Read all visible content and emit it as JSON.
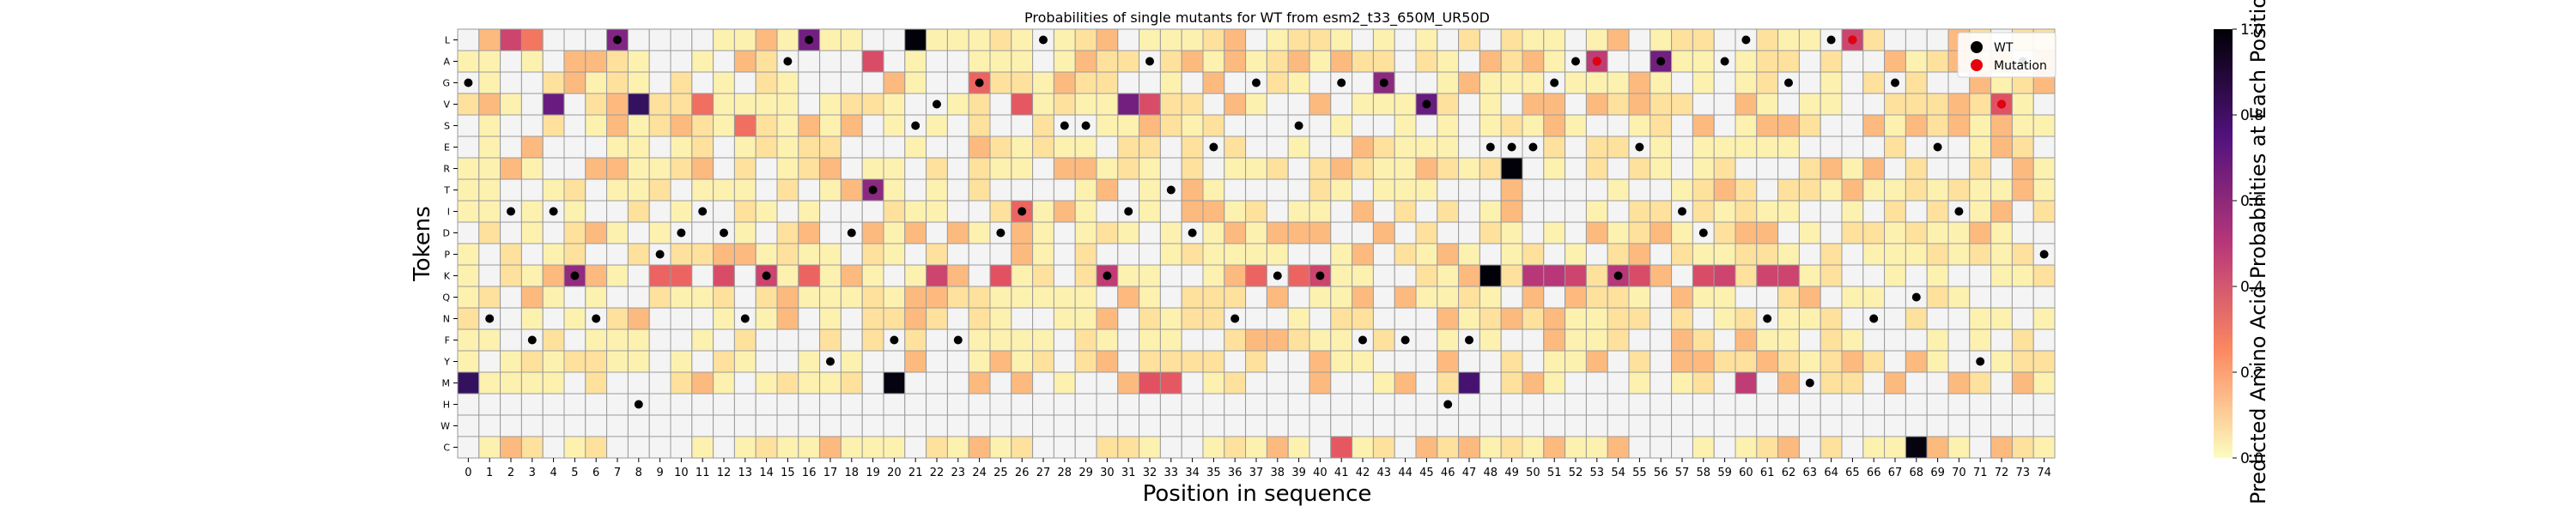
{
  "chart_data": {
    "type": "heatmap",
    "title": "Probabilities of single mutants for WT from esm2_t33_650M_UR50D",
    "xlabel": "Position in sequence",
    "ylabel": "Tokens",
    "colorbar_label": "Predicted Amino Acid Probabilities at Each Position",
    "colorbar_ticks": [
      "0.0",
      "0.2",
      "0.4",
      "0.6",
      "0.8",
      "1.0"
    ],
    "vrange": [
      0,
      1
    ],
    "colormap": "magma_r",
    "x_tick_labels": [
      "0",
      "1",
      "2",
      "3",
      "4",
      "5",
      "6",
      "7",
      "8",
      "9",
      "10",
      "11",
      "12",
      "13",
      "14",
      "15",
      "16",
      "17",
      "18",
      "19",
      "20",
      "21",
      "22",
      "23",
      "24",
      "25",
      "26",
      "27",
      "28",
      "29",
      "30",
      "31",
      "32",
      "33",
      "34",
      "35",
      "36",
      "37",
      "38",
      "39",
      "40",
      "41",
      "42",
      "43",
      "44",
      "45",
      "46",
      "47",
      "48",
      "49",
      "50",
      "51",
      "52",
      "53",
      "54",
      "55",
      "56",
      "57",
      "58",
      "59",
      "60",
      "61",
      "62",
      "63",
      "64",
      "65",
      "66",
      "67",
      "68",
      "69",
      "70",
      "71",
      "72",
      "73",
      "74"
    ],
    "tokens": [
      "L",
      "A",
      "G",
      "V",
      "S",
      "E",
      "R",
      "T",
      "I",
      "D",
      "P",
      "K",
      "Q",
      "N",
      "F",
      "Y",
      "M",
      "H",
      "W",
      "C"
    ],
    "legend": {
      "position": "top-right",
      "entries": [
        {
          "label": "WT",
          "color": "#000000"
        },
        {
          "label": "Mutation",
          "color": "#e3000f"
        }
      ]
    },
    "wt": [
      {
        "pos": 0,
        "token": "G"
      },
      {
        "pos": 1,
        "token": "N"
      },
      {
        "pos": 2,
        "token": "I"
      },
      {
        "pos": 3,
        "token": "F"
      },
      {
        "pos": 4,
        "token": "I"
      },
      {
        "pos": 5,
        "token": "K"
      },
      {
        "pos": 6,
        "token": "N"
      },
      {
        "pos": 7,
        "token": "L"
      },
      {
        "pos": 8,
        "token": "H"
      },
      {
        "pos": 9,
        "token": "P"
      },
      {
        "pos": 10,
        "token": "D"
      },
      {
        "pos": 11,
        "token": "I"
      },
      {
        "pos": 12,
        "token": "D"
      },
      {
        "pos": 13,
        "token": "N"
      },
      {
        "pos": 14,
        "token": "K"
      },
      {
        "pos": 15,
        "token": "A"
      },
      {
        "pos": 16,
        "token": "L"
      },
      {
        "pos": 17,
        "token": "Y"
      },
      {
        "pos": 18,
        "token": "D"
      },
      {
        "pos": 19,
        "token": "T"
      },
      {
        "pos": 20,
        "token": "F"
      },
      {
        "pos": 21,
        "token": "S"
      },
      {
        "pos": 22,
        "token": "V"
      },
      {
        "pos": 23,
        "token": "F"
      },
      {
        "pos": 24,
        "token": "G"
      },
      {
        "pos": 25,
        "token": "D"
      },
      {
        "pos": 26,
        "token": "I"
      },
      {
        "pos": 27,
        "token": "L"
      },
      {
        "pos": 28,
        "token": "S"
      },
      {
        "pos": 29,
        "token": "S"
      },
      {
        "pos": 30,
        "token": "K"
      },
      {
        "pos": 31,
        "token": "I"
      },
      {
        "pos": 32,
        "token": "A"
      },
      {
        "pos": 33,
        "token": "T"
      },
      {
        "pos": 34,
        "token": "D"
      },
      {
        "pos": 35,
        "token": "E"
      },
      {
        "pos": 36,
        "token": "N"
      },
      {
        "pos": 37,
        "token": "G"
      },
      {
        "pos": 38,
        "token": "K"
      },
      {
        "pos": 39,
        "token": "S"
      },
      {
        "pos": 40,
        "token": "K"
      },
      {
        "pos": 41,
        "token": "G"
      },
      {
        "pos": 42,
        "token": "F"
      },
      {
        "pos": 43,
        "token": "G"
      },
      {
        "pos": 44,
        "token": "F"
      },
      {
        "pos": 45,
        "token": "V"
      },
      {
        "pos": 46,
        "token": "H"
      },
      {
        "pos": 47,
        "token": "F"
      },
      {
        "pos": 48,
        "token": "E"
      },
      {
        "pos": 49,
        "token": "E"
      },
      {
        "pos": 50,
        "token": "E"
      },
      {
        "pos": 51,
        "token": "G"
      },
      {
        "pos": 52,
        "token": "A"
      },
      {
        "pos": 53,
        "token": "A"
      },
      {
        "pos": 54,
        "token": "K"
      },
      {
        "pos": 55,
        "token": "E"
      },
      {
        "pos": 56,
        "token": "A"
      },
      {
        "pos": 57,
        "token": "I"
      },
      {
        "pos": 58,
        "token": "D"
      },
      {
        "pos": 59,
        "token": "A"
      },
      {
        "pos": 60,
        "token": "L"
      },
      {
        "pos": 61,
        "token": "N"
      },
      {
        "pos": 62,
        "token": "G"
      },
      {
        "pos": 63,
        "token": "M"
      },
      {
        "pos": 64,
        "token": "L"
      },
      {
        "pos": 65,
        "token": "L"
      },
      {
        "pos": 66,
        "token": "N"
      },
      {
        "pos": 67,
        "token": "G"
      },
      {
        "pos": 68,
        "token": "Q"
      },
      {
        "pos": 69,
        "token": "E"
      },
      {
        "pos": 70,
        "token": "I"
      },
      {
        "pos": 71,
        "token": "Y"
      },
      {
        "pos": 72,
        "token": "V"
      },
      {
        "pos": 73,
        "token": "A"
      },
      {
        "pos": 74,
        "token": "P"
      }
    ],
    "mutations": [
      {
        "pos": 53,
        "token": "A"
      },
      {
        "pos": 65,
        "token": "L"
      },
      {
        "pos": 72,
        "token": "V"
      }
    ],
    "strong_cells": [
      {
        "pos": 0,
        "token": "M",
        "value": 0.82
      },
      {
        "pos": 2,
        "token": "L",
        "value": 0.45
      },
      {
        "pos": 3,
        "token": "L",
        "value": 0.3
      },
      {
        "pos": 4,
        "token": "V",
        "value": 0.7
      },
      {
        "pos": 5,
        "token": "K",
        "value": 0.6
      },
      {
        "pos": 7,
        "token": "L",
        "value": 0.65
      },
      {
        "pos": 8,
        "token": "V",
        "value": 0.82
      },
      {
        "pos": 11,
        "token": "V",
        "value": 0.32
      },
      {
        "pos": 9,
        "token": "K",
        "value": 0.35
      },
      {
        "pos": 10,
        "token": "K",
        "value": 0.35
      },
      {
        "pos": 12,
        "token": "K",
        "value": 0.42
      },
      {
        "pos": 13,
        "token": "S",
        "value": 0.32
      },
      {
        "pos": 14,
        "token": "K",
        "value": 0.45
      },
      {
        "pos": 16,
        "token": "L",
        "value": 0.68
      },
      {
        "pos": 16,
        "token": "K",
        "value": 0.35
      },
      {
        "pos": 19,
        "token": "A",
        "value": 0.42
      },
      {
        "pos": 19,
        "token": "T",
        "value": 0.62
      },
      {
        "pos": 20,
        "token": "M",
        "value": 0.98
      },
      {
        "pos": 21,
        "token": "L",
        "value": 0.99
      },
      {
        "pos": 22,
        "token": "K",
        "value": 0.45
      },
      {
        "pos": 24,
        "token": "G",
        "value": 0.35
      },
      {
        "pos": 25,
        "token": "K",
        "value": 0.4
      },
      {
        "pos": 26,
        "token": "V",
        "value": 0.38
      },
      {
        "pos": 26,
        "token": "I",
        "value": 0.35
      },
      {
        "pos": 30,
        "token": "K",
        "value": 0.48
      },
      {
        "pos": 31,
        "token": "V",
        "value": 0.68
      },
      {
        "pos": 32,
        "token": "V",
        "value": 0.42
      },
      {
        "pos": 32,
        "token": "M",
        "value": 0.4
      },
      {
        "pos": 33,
        "token": "M",
        "value": 0.38
      },
      {
        "pos": 37,
        "token": "K",
        "value": 0.35
      },
      {
        "pos": 39,
        "token": "K",
        "value": 0.35
      },
      {
        "pos": 40,
        "token": "K",
        "value": 0.45
      },
      {
        "pos": 41,
        "token": "C",
        "value": 0.38
      },
      {
        "pos": 43,
        "token": "G",
        "value": 0.62
      },
      {
        "pos": 45,
        "token": "V",
        "value": 0.7
      },
      {
        "pos": 47,
        "token": "M",
        "value": 0.78
      },
      {
        "pos": 48,
        "token": "K",
        "value": 0.99
      },
      {
        "pos": 49,
        "token": "R",
        "value": 0.99
      },
      {
        "pos": 50,
        "token": "K",
        "value": 0.5
      },
      {
        "pos": 51,
        "token": "K",
        "value": 0.5
      },
      {
        "pos": 52,
        "token": "K",
        "value": 0.45
      },
      {
        "pos": 53,
        "token": "A",
        "value": 0.48
      },
      {
        "pos": 54,
        "token": "K",
        "value": 0.5
      },
      {
        "pos": 55,
        "token": "K",
        "value": 0.42
      },
      {
        "pos": 56,
        "token": "A",
        "value": 0.68
      },
      {
        "pos": 58,
        "token": "K",
        "value": 0.42
      },
      {
        "pos": 59,
        "token": "K",
        "value": 0.45
      },
      {
        "pos": 60,
        "token": "M",
        "value": 0.48
      },
      {
        "pos": 61,
        "token": "K",
        "value": 0.45
      },
      {
        "pos": 62,
        "token": "K",
        "value": 0.45
      },
      {
        "pos": 65,
        "token": "L",
        "value": 0.45
      },
      {
        "pos": 68,
        "token": "C",
        "value": 0.98
      },
      {
        "pos": 72,
        "token": "V",
        "value": 0.4
      }
    ]
  }
}
